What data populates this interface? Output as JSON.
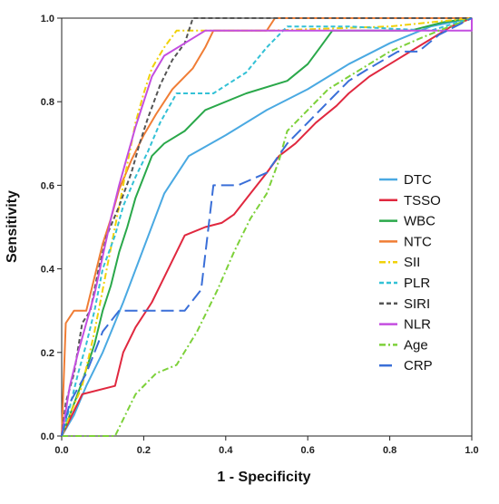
{
  "chart_data": {
    "type": "line",
    "title": "",
    "xlabel": "1 - Specificity",
    "ylabel": "Sensitivity",
    "xlim": [
      0,
      1
    ],
    "ylim": [
      0,
      1
    ],
    "x_ticks": [
      "0.0",
      "0.2",
      "0.4",
      "0.6",
      "0.8",
      "1.0"
    ],
    "y_ticks": [
      "0.0",
      "0.2",
      "0.4",
      "0.6",
      "0.8",
      "1.0"
    ],
    "grid": false,
    "legend_position": "right",
    "reference_line": false,
    "series": [
      {
        "name": "DTC",
        "color": "#4aa9e2",
        "dash": "solid",
        "points": [
          [
            0,
            0
          ],
          [
            0.03,
            0.05
          ],
          [
            0.06,
            0.12
          ],
          [
            0.1,
            0.2
          ],
          [
            0.15,
            0.32
          ],
          [
            0.2,
            0.45
          ],
          [
            0.25,
            0.58
          ],
          [
            0.31,
            0.67
          ],
          [
            0.4,
            0.72
          ],
          [
            0.5,
            0.78
          ],
          [
            0.6,
            0.83
          ],
          [
            0.7,
            0.89
          ],
          [
            0.8,
            0.94
          ],
          [
            0.9,
            0.98
          ],
          [
            1,
            1
          ]
        ]
      },
      {
        "name": "TSSO",
        "color": "#e0283f",
        "dash": "solid",
        "points": [
          [
            0,
            0
          ],
          [
            0.05,
            0.1
          ],
          [
            0.13,
            0.12
          ],
          [
            0.15,
            0.2
          ],
          [
            0.18,
            0.26
          ],
          [
            0.22,
            0.32
          ],
          [
            0.25,
            0.38
          ],
          [
            0.3,
            0.48
          ],
          [
            0.35,
            0.5
          ],
          [
            0.39,
            0.51
          ],
          [
            0.42,
            0.53
          ],
          [
            0.46,
            0.58
          ],
          [
            0.5,
            0.63
          ],
          [
            0.53,
            0.67
          ],
          [
            0.57,
            0.7
          ],
          [
            0.62,
            0.75
          ],
          [
            0.67,
            0.79
          ],
          [
            0.7,
            0.82
          ],
          [
            0.75,
            0.86
          ],
          [
            0.8,
            0.89
          ],
          [
            0.85,
            0.92
          ],
          [
            0.9,
            0.95
          ],
          [
            0.95,
            0.98
          ],
          [
            1,
            1
          ]
        ]
      },
      {
        "name": "WBC",
        "color": "#2aa84a",
        "dash": "solid",
        "points": [
          [
            0,
            0
          ],
          [
            0.02,
            0.05
          ],
          [
            0.05,
            0.13
          ],
          [
            0.08,
            0.22
          ],
          [
            0.1,
            0.3
          ],
          [
            0.12,
            0.36
          ],
          [
            0.14,
            0.44
          ],
          [
            0.16,
            0.5
          ],
          [
            0.18,
            0.57
          ],
          [
            0.2,
            0.62
          ],
          [
            0.22,
            0.67
          ],
          [
            0.25,
            0.7
          ],
          [
            0.3,
            0.73
          ],
          [
            0.35,
            0.78
          ],
          [
            0.45,
            0.82
          ],
          [
            0.55,
            0.85
          ],
          [
            0.6,
            0.89
          ],
          [
            0.63,
            0.93
          ],
          [
            0.66,
            0.97
          ],
          [
            0.75,
            0.97
          ],
          [
            0.85,
            0.97
          ],
          [
            0.93,
            0.99
          ],
          [
            1,
            1
          ]
        ]
      },
      {
        "name": "NTC",
        "color": "#f07d35",
        "dash": "solid",
        "points": [
          [
            0,
            0
          ],
          [
            0.01,
            0.27
          ],
          [
            0.03,
            0.3
          ],
          [
            0.06,
            0.3
          ],
          [
            0.08,
            0.38
          ],
          [
            0.1,
            0.46
          ],
          [
            0.12,
            0.52
          ],
          [
            0.14,
            0.59
          ],
          [
            0.17,
            0.66
          ],
          [
            0.2,
            0.72
          ],
          [
            0.23,
            0.77
          ],
          [
            0.27,
            0.83
          ],
          [
            0.32,
            0.88
          ],
          [
            0.35,
            0.93
          ],
          [
            0.37,
            0.97
          ],
          [
            0.5,
            0.97
          ],
          [
            0.52,
            1
          ],
          [
            1,
            1
          ]
        ]
      },
      {
        "name": "SII",
        "color": "#f0d20a",
        "dash": "dashdot",
        "points": [
          [
            0,
            0
          ],
          [
            0.02,
            0.05
          ],
          [
            0.05,
            0.12
          ],
          [
            0.08,
            0.25
          ],
          [
            0.1,
            0.35
          ],
          [
            0.12,
            0.45
          ],
          [
            0.14,
            0.55
          ],
          [
            0.16,
            0.65
          ],
          [
            0.18,
            0.75
          ],
          [
            0.2,
            0.82
          ],
          [
            0.22,
            0.88
          ],
          [
            0.25,
            0.93
          ],
          [
            0.28,
            0.97
          ],
          [
            0.5,
            0.97
          ],
          [
            0.8,
            0.98
          ],
          [
            1,
            1
          ]
        ]
      },
      {
        "name": "PLR",
        "color": "#33c1d6",
        "dash": "dash",
        "points": [
          [
            0,
            0
          ],
          [
            0.02,
            0.07
          ],
          [
            0.04,
            0.15
          ],
          [
            0.06,
            0.22
          ],
          [
            0.08,
            0.3
          ],
          [
            0.1,
            0.4
          ],
          [
            0.13,
            0.48
          ],
          [
            0.15,
            0.55
          ],
          [
            0.18,
            0.62
          ],
          [
            0.21,
            0.68
          ],
          [
            0.24,
            0.75
          ],
          [
            0.28,
            0.82
          ],
          [
            0.37,
            0.82
          ],
          [
            0.45,
            0.87
          ],
          [
            0.5,
            0.93
          ],
          [
            0.55,
            0.98
          ],
          [
            0.7,
            0.98
          ],
          [
            0.9,
            0.97
          ],
          [
            1,
            1
          ]
        ]
      },
      {
        "name": "SIRI",
        "color": "#555555",
        "dash": "dash",
        "points": [
          [
            0,
            0
          ],
          [
            0.01,
            0.08
          ],
          [
            0.03,
            0.15
          ],
          [
            0.05,
            0.27
          ],
          [
            0.07,
            0.3
          ],
          [
            0.09,
            0.4
          ],
          [
            0.11,
            0.48
          ],
          [
            0.14,
            0.55
          ],
          [
            0.17,
            0.63
          ],
          [
            0.19,
            0.7
          ],
          [
            0.21,
            0.76
          ],
          [
            0.24,
            0.84
          ],
          [
            0.27,
            0.9
          ],
          [
            0.3,
            0.94
          ],
          [
            0.32,
            1
          ],
          [
            1,
            1
          ]
        ]
      },
      {
        "name": "NLR",
        "color": "#c44ee0",
        "dash": "solid",
        "points": [
          [
            0,
            0
          ],
          [
            0.02,
            0.12
          ],
          [
            0.04,
            0.2
          ],
          [
            0.06,
            0.27
          ],
          [
            0.08,
            0.34
          ],
          [
            0.1,
            0.43
          ],
          [
            0.12,
            0.52
          ],
          [
            0.14,
            0.6
          ],
          [
            0.16,
            0.67
          ],
          [
            0.18,
            0.74
          ],
          [
            0.2,
            0.8
          ],
          [
            0.22,
            0.86
          ],
          [
            0.25,
            0.91
          ],
          [
            0.3,
            0.94
          ],
          [
            0.35,
            0.97
          ],
          [
            1,
            0.97
          ],
          [
            1,
            1
          ]
        ]
      },
      {
        "name": "Age",
        "color": "#7dd13a",
        "dash": "dashdot",
        "points": [
          [
            0,
            0
          ],
          [
            0.13,
            0
          ],
          [
            0.18,
            0.1
          ],
          [
            0.23,
            0.15
          ],
          [
            0.28,
            0.17
          ],
          [
            0.33,
            0.25
          ],
          [
            0.38,
            0.35
          ],
          [
            0.42,
            0.44
          ],
          [
            0.46,
            0.52
          ],
          [
            0.5,
            0.58
          ],
          [
            0.53,
            0.66
          ],
          [
            0.55,
            0.73
          ],
          [
            0.6,
            0.78
          ],
          [
            0.65,
            0.83
          ],
          [
            0.7,
            0.86
          ],
          [
            0.75,
            0.89
          ],
          [
            0.8,
            0.92
          ],
          [
            0.87,
            0.95
          ],
          [
            0.92,
            0.97
          ],
          [
            1,
            1
          ]
        ]
      },
      {
        "name": "CRP",
        "color": "#3a6fd8",
        "dash": "longdash",
        "points": [
          [
            0,
            0
          ],
          [
            0.02,
            0.08
          ],
          [
            0.06,
            0.15
          ],
          [
            0.1,
            0.25
          ],
          [
            0.14,
            0.3
          ],
          [
            0.2,
            0.3
          ],
          [
            0.25,
            0.3
          ],
          [
            0.3,
            0.3
          ],
          [
            0.34,
            0.35
          ],
          [
            0.37,
            0.6
          ],
          [
            0.43,
            0.6
          ],
          [
            0.5,
            0.63
          ],
          [
            0.55,
            0.7
          ],
          [
            0.6,
            0.75
          ],
          [
            0.65,
            0.8
          ],
          [
            0.7,
            0.85
          ],
          [
            0.75,
            0.88
          ],
          [
            0.82,
            0.92
          ],
          [
            0.87,
            0.92
          ],
          [
            0.92,
            0.96
          ],
          [
            1,
            1
          ]
        ]
      }
    ]
  }
}
